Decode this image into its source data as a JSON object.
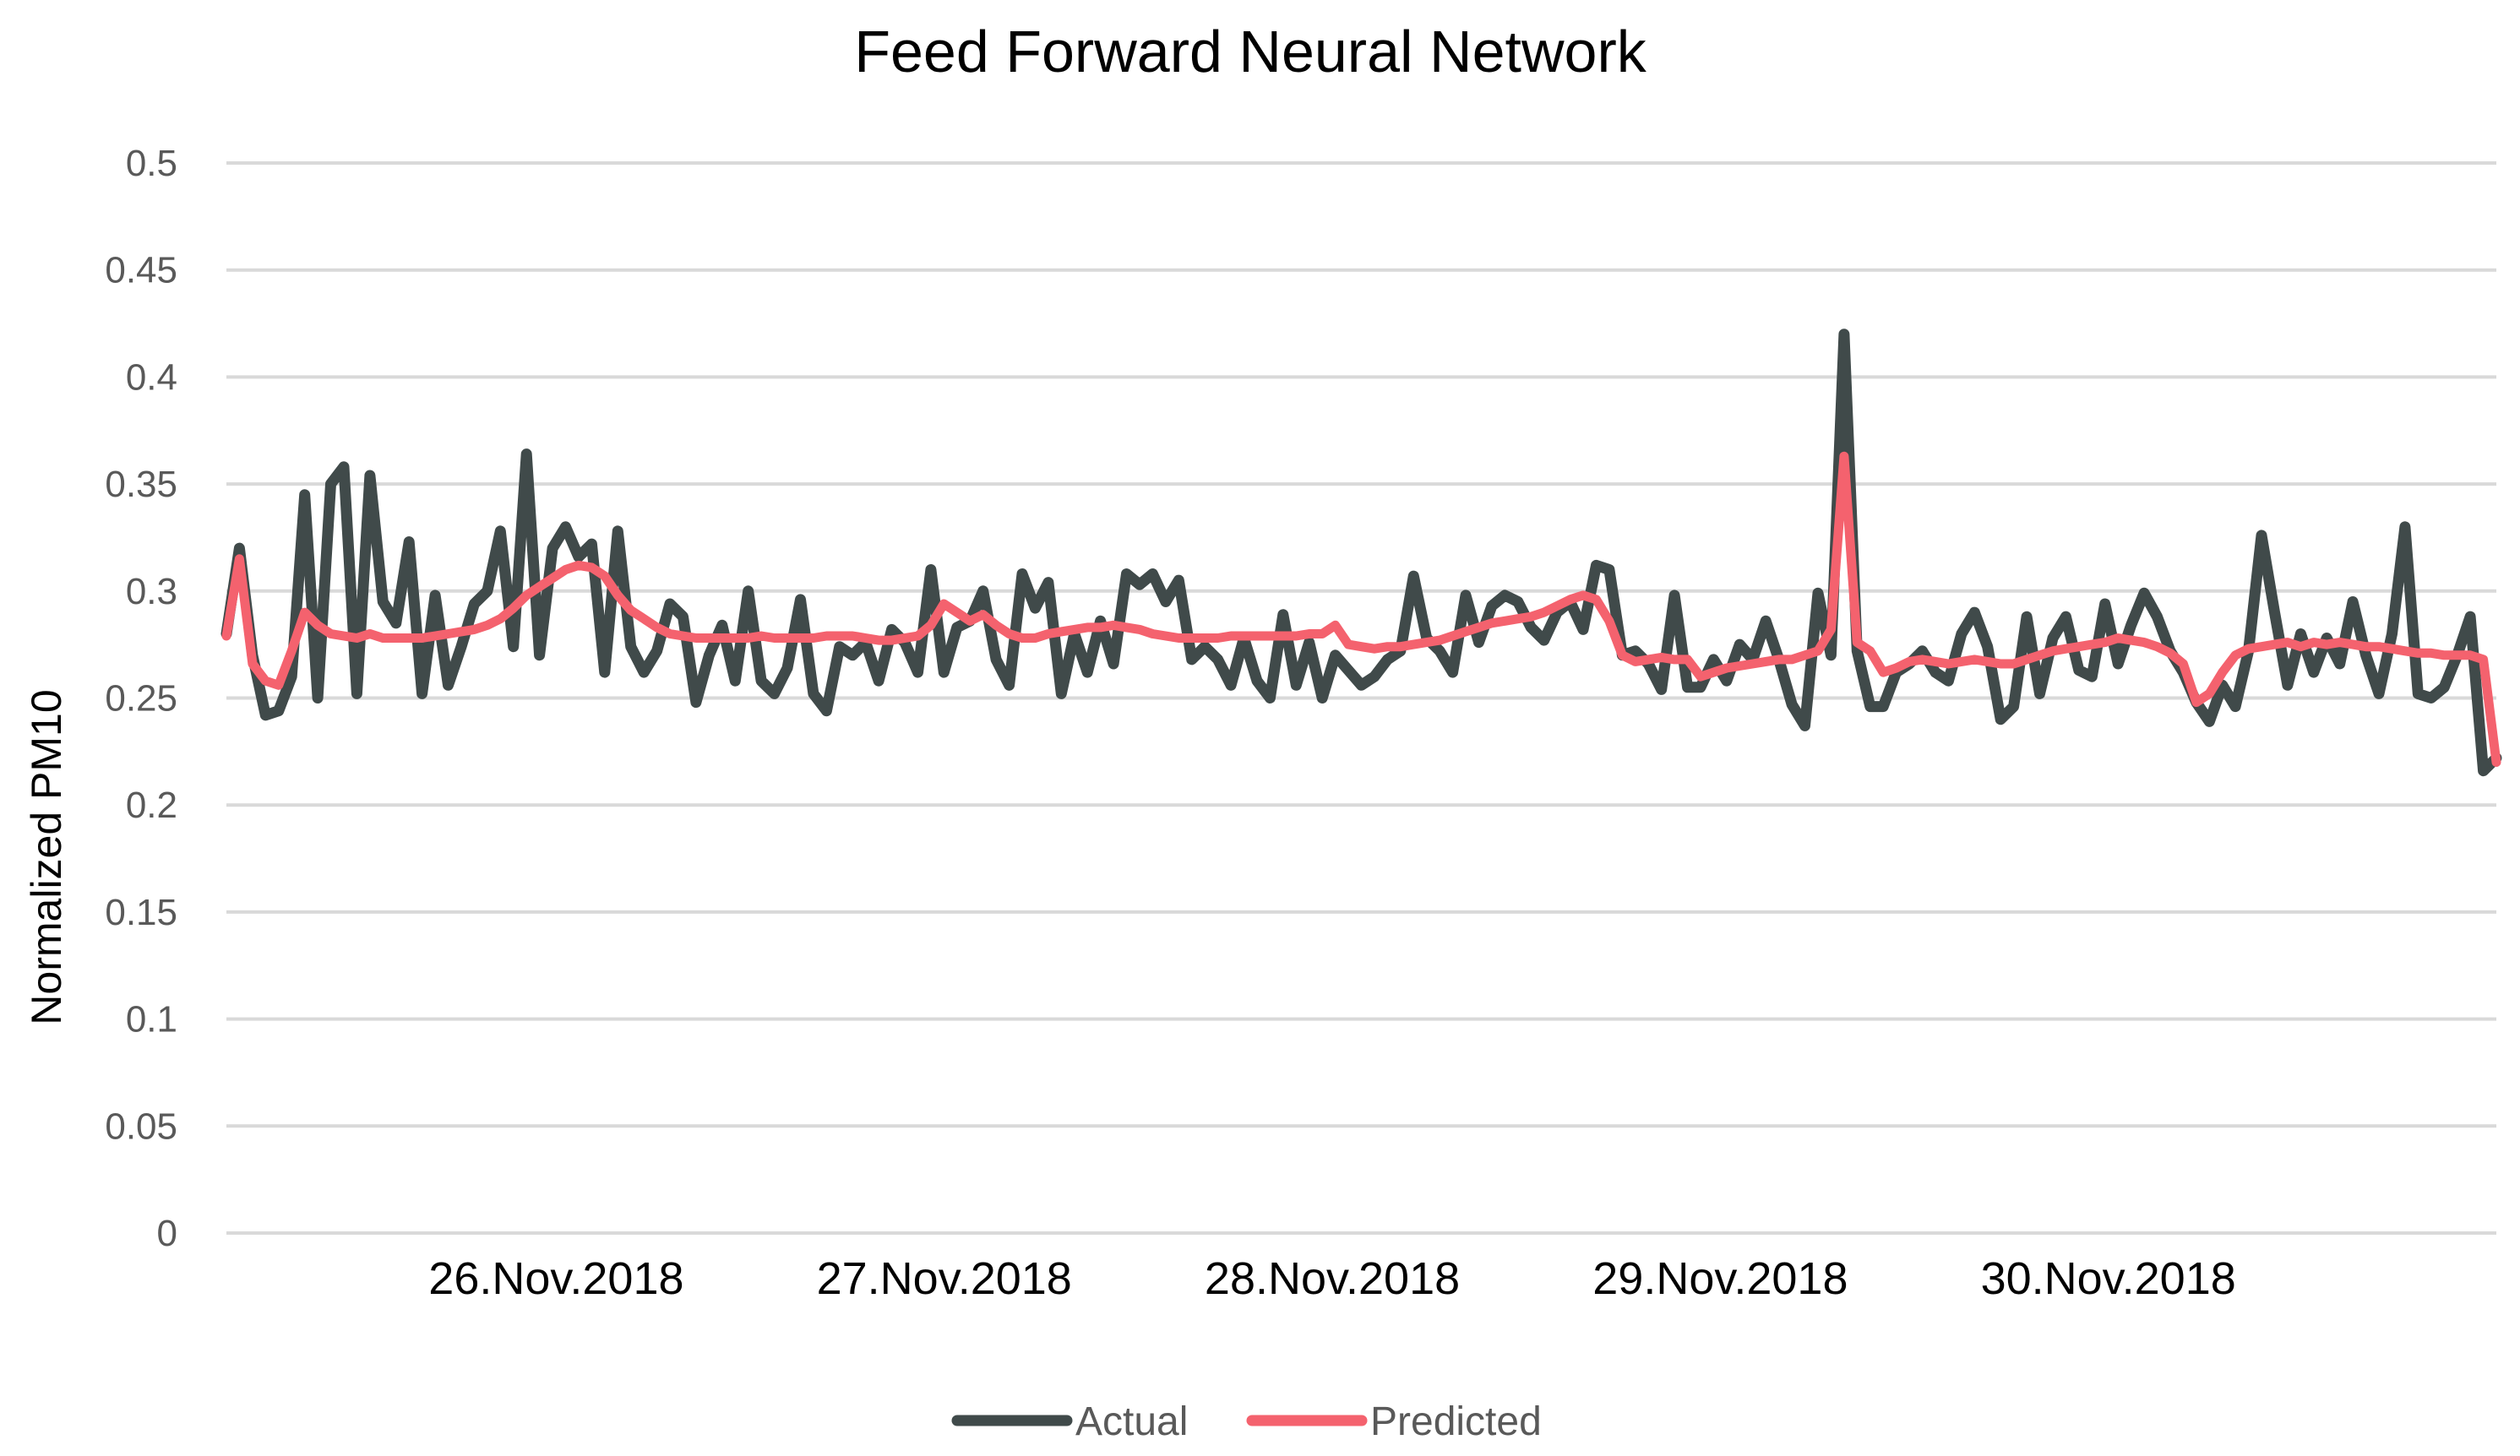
{
  "chart_data": {
    "type": "line",
    "title": "Feed Forward Neural Network",
    "xlabel": "",
    "ylabel": "Normalized PM10",
    "ylim": [
      0,
      0.5
    ],
    "yticks": [
      "0",
      "0.05",
      "0.1",
      "0.15",
      "0.2",
      "0.25",
      "0.3",
      "0.35",
      "0.4",
      "0.45",
      "0.5"
    ],
    "xticks": [
      "26.Nov.2018",
      "27.Nov.2018",
      "28.Nov.2018",
      "29.Nov.2018",
      "30.Nov.2018"
    ],
    "x_range": [
      "25.Nov.2018",
      "1.Dec.2018"
    ],
    "grid": true,
    "legend": "bottom",
    "series": [
      {
        "name": "Actual",
        "color": "#404a4a",
        "values": [
          0.28,
          0.32,
          0.27,
          0.242,
          0.244,
          0.26,
          0.345,
          0.25,
          0.35,
          0.358,
          0.252,
          0.354,
          0.295,
          0.285,
          0.323,
          0.252,
          0.298,
          0.256,
          0.274,
          0.294,
          0.3,
          0.328,
          0.274,
          0.364,
          0.27,
          0.32,
          0.33,
          0.316,
          0.322,
          0.262,
          0.328,
          0.274,
          0.262,
          0.272,
          0.294,
          0.288,
          0.248,
          0.27,
          0.284,
          0.258,
          0.3,
          0.258,
          0.252,
          0.264,
          0.296,
          0.252,
          0.244,
          0.274,
          0.27,
          0.276,
          0.258,
          0.282,
          0.276,
          0.262,
          0.31,
          0.262,
          0.283,
          0.286,
          0.3,
          0.268,
          0.256,
          0.308,
          0.292,
          0.304,
          0.252,
          0.28,
          0.262,
          0.286,
          0.266,
          0.308,
          0.303,
          0.308,
          0.295,
          0.305,
          0.268,
          0.274,
          0.268,
          0.256,
          0.278,
          0.258,
          0.25,
          0.289,
          0.256,
          0.276,
          0.25,
          0.27,
          0.263,
          0.256,
          0.26,
          0.268,
          0.272,
          0.307,
          0.278,
          0.272,
          0.262,
          0.298,
          0.276,
          0.293,
          0.298,
          0.295,
          0.283,
          0.277,
          0.29,
          0.295,
          0.282,
          0.312,
          0.31,
          0.27,
          0.272,
          0.266,
          0.254,
          0.298,
          0.255,
          0.255,
          0.268,
          0.258,
          0.275,
          0.268,
          0.286,
          0.268,
          0.247,
          0.237,
          0.299,
          0.27,
          0.42,
          0.272,
          0.246,
          0.246,
          0.262,
          0.266,
          0.272,
          0.262,
          0.258,
          0.28,
          0.29,
          0.274,
          0.24,
          0.246,
          0.288,
          0.252,
          0.278,
          0.288,
          0.263,
          0.26,
          0.294,
          0.266,
          0.284,
          0.299,
          0.288,
          0.272,
          0.262,
          0.248,
          0.239,
          0.256,
          0.246,
          0.272,
          0.326,
          0.29,
          0.256,
          0.28,
          0.262,
          0.278,
          0.266,
          0.295,
          0.27,
          0.252,
          0.28,
          0.33,
          0.252,
          0.25,
          0.255,
          0.27,
          0.288,
          0.216,
          0.222
        ]
      },
      {
        "name": "Predicted",
        "color": "#f4626e",
        "values": [
          0.279,
          0.315,
          0.266,
          0.258,
          0.256,
          0.272,
          0.29,
          0.284,
          0.28,
          0.279,
          0.278,
          0.28,
          0.278,
          0.278,
          0.278,
          0.278,
          0.279,
          0.28,
          0.281,
          0.282,
          0.284,
          0.287,
          0.292,
          0.298,
          0.302,
          0.306,
          0.31,
          0.312,
          0.311,
          0.307,
          0.298,
          0.291,
          0.287,
          0.283,
          0.28,
          0.279,
          0.278,
          0.278,
          0.278,
          0.278,
          0.278,
          0.279,
          0.278,
          0.278,
          0.278,
          0.278,
          0.279,
          0.279,
          0.279,
          0.278,
          0.277,
          0.277,
          0.278,
          0.279,
          0.284,
          0.294,
          0.29,
          0.286,
          0.289,
          0.284,
          0.28,
          0.278,
          0.278,
          0.28,
          0.281,
          0.282,
          0.283,
          0.283,
          0.284,
          0.283,
          0.282,
          0.28,
          0.279,
          0.278,
          0.278,
          0.278,
          0.278,
          0.279,
          0.279,
          0.279,
          0.279,
          0.279,
          0.279,
          0.28,
          0.28,
          0.284,
          0.275,
          0.274,
          0.273,
          0.274,
          0.274,
          0.275,
          0.276,
          0.277,
          0.279,
          0.281,
          0.283,
          0.285,
          0.286,
          0.287,
          0.288,
          0.29,
          0.293,
          0.296,
          0.298,
          0.296,
          0.286,
          0.27,
          0.267,
          0.268,
          0.269,
          0.268,
          0.268,
          0.26,
          0.262,
          0.264,
          0.265,
          0.266,
          0.267,
          0.268,
          0.268,
          0.27,
          0.272,
          0.282,
          0.363,
          0.276,
          0.272,
          0.262,
          0.264,
          0.267,
          0.268,
          0.267,
          0.266,
          0.267,
          0.268,
          0.267,
          0.266,
          0.266,
          0.268,
          0.27,
          0.272,
          0.273,
          0.274,
          0.275,
          0.276,
          0.278,
          0.277,
          0.276,
          0.274,
          0.271,
          0.266,
          0.248,
          0.252,
          0.262,
          0.27,
          0.273,
          0.274,
          0.275,
          0.276,
          0.274,
          0.276,
          0.275,
          0.276,
          0.275,
          0.274,
          0.274,
          0.273,
          0.272,
          0.271,
          0.271,
          0.27,
          0.27,
          0.27,
          0.268,
          0.22
        ]
      }
    ]
  }
}
